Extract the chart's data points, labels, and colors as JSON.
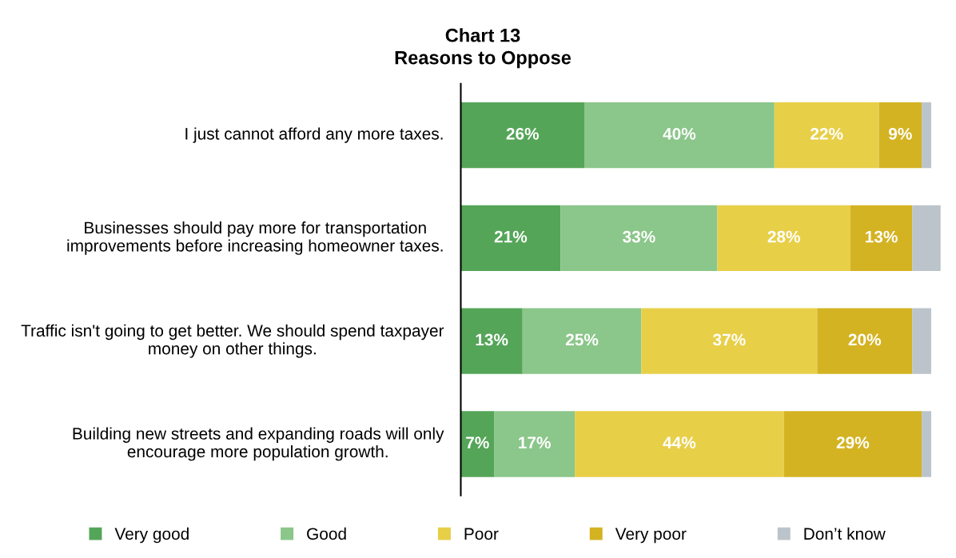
{
  "chart_data": {
    "type": "bar",
    "orientation": "horizontal",
    "stacked": true,
    "title": "Chart 13",
    "subtitle": "Reasons to Oppose",
    "categories": [
      "I just cannot afford any more taxes.",
      "Businesses should pay more for transportation improvements before increasing homeowner taxes.",
      "Traffic isn't going to get better. We should spend taxpayer money on other things.",
      "Building new streets and expanding roads will only encourage more population growth."
    ],
    "series": [
      {
        "name": "Very good",
        "color": "#55a558",
        "values": [
          26,
          21,
          13,
          7
        ],
        "value_labels": [
          "26%",
          "21%",
          "13%",
          "7%"
        ]
      },
      {
        "name": "Good",
        "color": "#8bc68a",
        "values": [
          40,
          33,
          25,
          17
        ],
        "value_labels": [
          "40%",
          "33%",
          "25%",
          "17%"
        ]
      },
      {
        "name": "Poor",
        "color": "#e8cf48",
        "values": [
          22,
          28,
          37,
          44
        ],
        "value_labels": [
          "22%",
          "28%",
          "37%",
          "44%"
        ]
      },
      {
        "name": "Very poor",
        "color": "#d4b323",
        "values": [
          9,
          13,
          20,
          29
        ],
        "value_labels": [
          "9%",
          "13%",
          "20%",
          "29%"
        ]
      },
      {
        "name": "Don’t know",
        "color": "#bcc4cb",
        "values": [
          2,
          6,
          4,
          2
        ],
        "value_labels": [
          null,
          null,
          null,
          null
        ]
      }
    ],
    "legend": "bottom",
    "grid": false
  }
}
